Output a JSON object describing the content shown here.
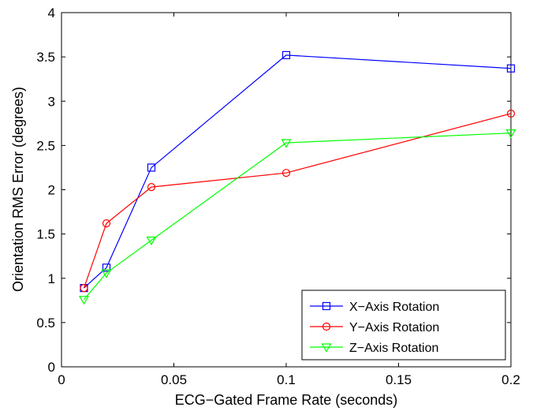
{
  "chart_data": {
    "type": "line",
    "title": "",
    "xlabel": "ECG−Gated Frame Rate (seconds)",
    "ylabel": "Orientation RMS Error (degrees)",
    "xlim": [
      0,
      0.2
    ],
    "ylim": [
      0,
      4
    ],
    "xticks": [
      0,
      0.05,
      0.1,
      0.15,
      0.2
    ],
    "xtick_labels": [
      "0",
      "0.05",
      "0.1",
      "0.15",
      "0.2"
    ],
    "yticks": [
      0,
      0.5,
      1,
      1.5,
      2,
      2.5,
      3,
      3.5,
      4
    ],
    "ytick_labels": [
      "0",
      "0.5",
      "1",
      "1.5",
      "2",
      "2.5",
      "3",
      "3.5",
      "4"
    ],
    "grid": false,
    "legend_position": "bottom-right",
    "x": [
      0.01,
      0.02,
      0.04,
      0.1,
      0.2
    ],
    "series": [
      {
        "name": "X−Axis Rotation",
        "color": "#0000ff",
        "marker": "square",
        "values": [
          0.89,
          1.12,
          2.25,
          3.52,
          3.37
        ]
      },
      {
        "name": "Y−Axis Rotation",
        "color": "#ff0000",
        "marker": "circle",
        "values": [
          0.89,
          1.62,
          2.03,
          2.19,
          2.86
        ]
      },
      {
        "name": "Z−Axis Rotation",
        "color": "#00ff00",
        "marker": "triangle-down",
        "values": [
          0.76,
          1.06,
          1.43,
          2.53,
          2.64
        ]
      }
    ]
  }
}
